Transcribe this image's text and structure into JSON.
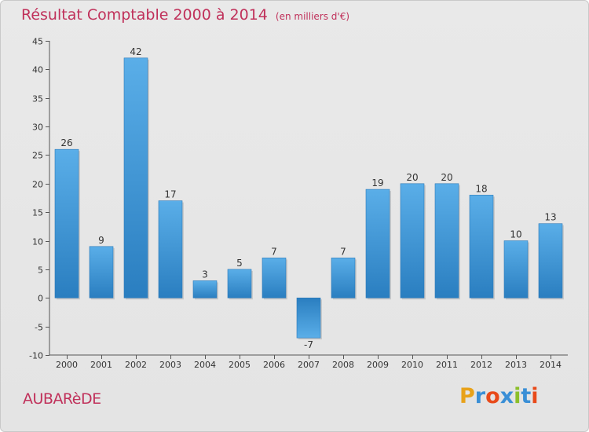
{
  "title": "Résultat Comptable 2000 à 2014",
  "unit": "(en milliers d'€)",
  "commune": "AUBARèDE",
  "logo": {
    "letters": [
      "P",
      "r",
      "o",
      "x",
      "i",
      "t",
      "i"
    ],
    "colors": [
      "#e8a21a",
      "#3a8fd6",
      "#e84a1a",
      "#3a8fd6",
      "#8cbf2a",
      "#3a8fd6",
      "#e84a1a"
    ]
  },
  "colors": {
    "title": "#c0305a",
    "bar_light": "#5aaee8",
    "bar_dark": "#2a7ec0"
  },
  "chart_data": {
    "type": "bar",
    "title": "Résultat Comptable 2000 à 2014",
    "subtitle": "(en milliers d'€)",
    "xlabel": "",
    "ylabel": "",
    "categories": [
      "2000",
      "2001",
      "2002",
      "2003",
      "2004",
      "2005",
      "2006",
      "2007",
      "2008",
      "2009",
      "2010",
      "2011",
      "2012",
      "2013",
      "2014"
    ],
    "values": [
      26,
      9,
      42,
      17,
      3,
      5,
      7,
      -7,
      7,
      19,
      20,
      20,
      18,
      10,
      13
    ],
    "ylim": [
      -10,
      45
    ],
    "yticks": [
      -10,
      -5,
      0,
      5,
      10,
      15,
      20,
      25,
      30,
      35,
      40,
      45
    ],
    "grid": false,
    "legend": "none"
  }
}
